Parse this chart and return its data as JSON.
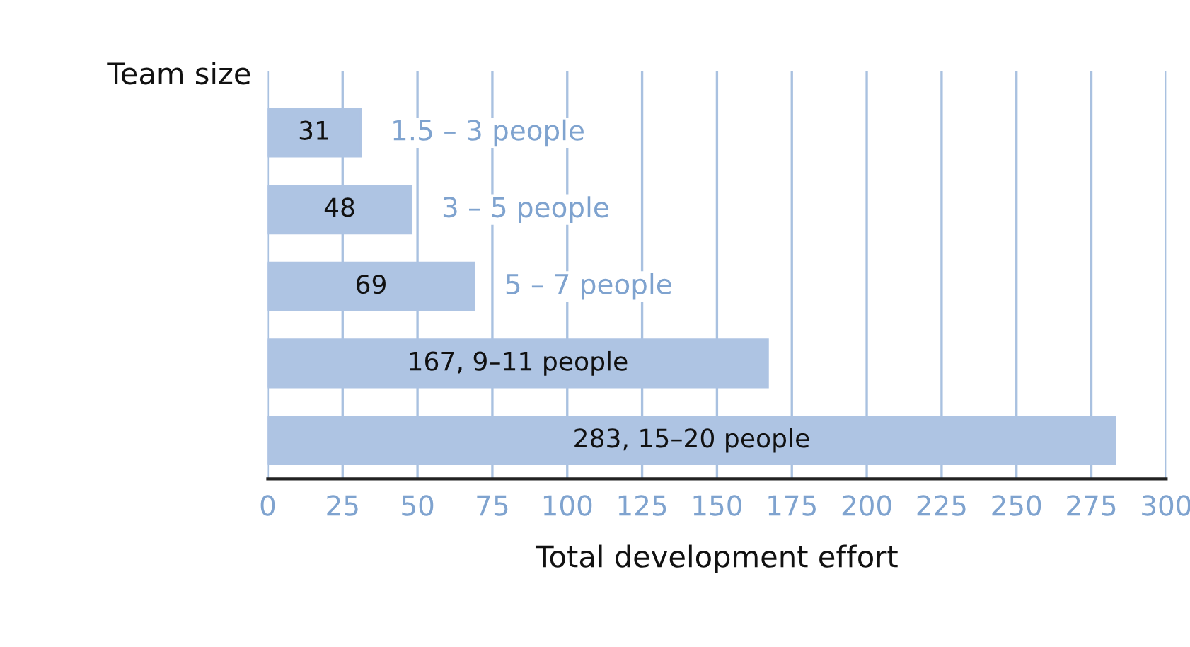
{
  "chart_data": {
    "type": "bar",
    "orientation": "horizontal",
    "ylabel": "Team size",
    "xlabel": "Total development effort",
    "categories": [
      null,
      null,
      null,
      null,
      null
    ],
    "values": [
      31,
      48,
      69,
      167,
      283
    ],
    "color": "#aec4e3",
    "value_labels": [
      "31",
      "48",
      "69",
      "167, 9–11 people",
      "283, 15–20 people"
    ],
    "annotations": [
      "1.5 – 3 people",
      "3 – 5 people",
      "5 – 7 people"
    ],
    "xlim": [
      0,
      300
    ],
    "xticks": [
      0,
      25,
      50,
      75,
      100,
      125,
      150,
      175,
      200,
      225,
      250,
      275,
      300
    ],
    "grid": "x"
  }
}
